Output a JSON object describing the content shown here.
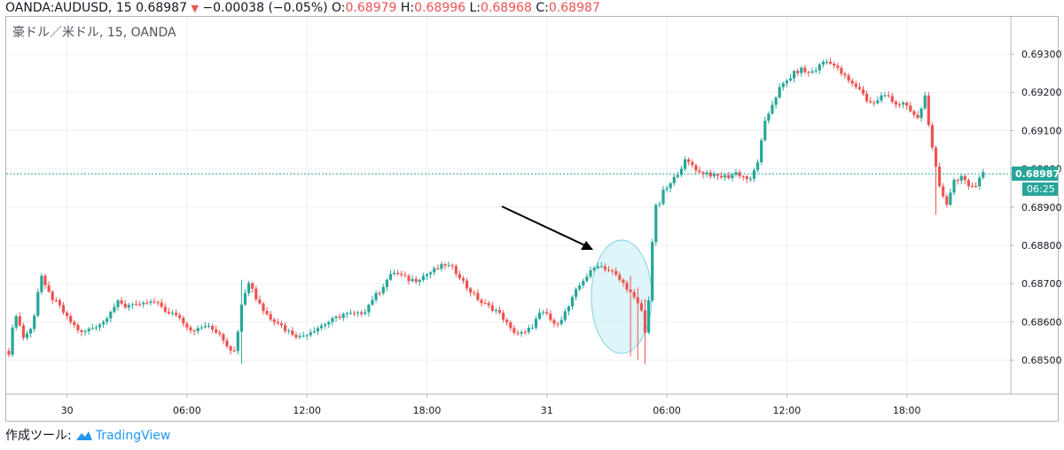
{
  "header": {
    "symbol": "OANDA:AUDUSD, 15",
    "last": "0.68987",
    "change_icon": "down-triangle-icon",
    "change": "−0.00038 (−0.05%)",
    "open_label": "O:",
    "open": "0.68979",
    "high_label": "H:",
    "high": "0.68996",
    "low_label": "L:",
    "low": "0.68968",
    "close_label": "C:",
    "close": "0.68987"
  },
  "footer": {
    "made_with": "作成ツール:",
    "brand": "TradingView",
    "brand_icon": "tradingview-logo-icon"
  },
  "colors": {
    "up": "#26a69a",
    "down": "#ef5350",
    "price_line": "#26a69a",
    "annotation_fill": "#d0f1f7",
    "arrow": "#000000"
  },
  "chart_data": {
    "type": "candlestick",
    "title": "豪ドル／米ドル, 15, OANDA",
    "ylim": [
      0.6844,
      0.6935
    ],
    "y_ticks": [
      "0.68500",
      "0.68600",
      "0.68700",
      "0.68800",
      "0.68900",
      "0.69000",
      "0.69100",
      "0.69200",
      "0.69300"
    ],
    "x_ticks": [
      "30",
      "06:00",
      "12:00",
      "18:00",
      "31",
      "06:00",
      "12:00",
      "18:00"
    ],
    "current_price": "0.68987",
    "countdown": "06:25",
    "grid": true,
    "anchors": [
      [
        0,
        0.6852
      ],
      [
        1,
        0.6858
      ],
      [
        2,
        0.6862
      ],
      [
        3,
        0.6859
      ],
      [
        4,
        0.6856
      ],
      [
        5,
        0.6857
      ],
      [
        6,
        0.6858
      ],
      [
        7,
        0.6862
      ],
      [
        8,
        0.6868
      ],
      [
        9,
        0.6872
      ],
      [
        10,
        0.6869
      ],
      [
        12,
        0.6866
      ],
      [
        14,
        0.6864
      ],
      [
        16,
        0.6861
      ],
      [
        18,
        0.6859
      ],
      [
        20,
        0.6857
      ],
      [
        22,
        0.6858
      ],
      [
        24,
        0.6859
      ],
      [
        26,
        0.686
      ],
      [
        28,
        0.6863
      ],
      [
        30,
        0.6865
      ],
      [
        32,
        0.6864
      ],
      [
        34,
        0.6865
      ],
      [
        36,
        0.6864
      ],
      [
        38,
        0.6865
      ],
      [
        40,
        0.6865
      ],
      [
        42,
        0.6864
      ],
      [
        44,
        0.6862
      ],
      [
        46,
        0.6862
      ],
      [
        48,
        0.686
      ],
      [
        50,
        0.6858
      ],
      [
        52,
        0.6858
      ],
      [
        54,
        0.6859
      ],
      [
        56,
        0.6858
      ],
      [
        58,
        0.6857
      ],
      [
        60,
        0.6854
      ],
      [
        62,
        0.6852
      ],
      [
        63,
        0.6858
      ],
      [
        64,
        0.6865
      ],
      [
        65,
        0.6868
      ],
      [
        66,
        0.687
      ],
      [
        67,
        0.6869
      ],
      [
        68,
        0.6866
      ],
      [
        69,
        0.6865
      ],
      [
        70,
        0.6863
      ],
      [
        72,
        0.6861
      ],
      [
        74,
        0.686
      ],
      [
        76,
        0.6858
      ],
      [
        78,
        0.6857
      ],
      [
        80,
        0.6856
      ],
      [
        82,
        0.6857
      ],
      [
        84,
        0.6858
      ],
      [
        86,
        0.6859
      ],
      [
        88,
        0.686
      ],
      [
        90,
        0.6861
      ],
      [
        92,
        0.6862
      ],
      [
        94,
        0.6862
      ],
      [
        96,
        0.6862
      ],
      [
        98,
        0.6863
      ],
      [
        100,
        0.6866
      ],
      [
        102,
        0.6868
      ],
      [
        104,
        0.6871
      ],
      [
        106,
        0.6873
      ],
      [
        108,
        0.6872
      ],
      [
        110,
        0.6871
      ],
      [
        112,
        0.6871
      ],
      [
        114,
        0.6872
      ],
      [
        116,
        0.6873
      ],
      [
        118,
        0.6874
      ],
      [
        120,
        0.6875
      ],
      [
        122,
        0.6874
      ],
      [
        124,
        0.6872
      ],
      [
        126,
        0.6869
      ],
      [
        128,
        0.6867
      ],
      [
        130,
        0.6865
      ],
      [
        132,
        0.6864
      ],
      [
        134,
        0.6863
      ],
      [
        136,
        0.6861
      ],
      [
        138,
        0.6858
      ],
      [
        140,
        0.6857
      ],
      [
        142,
        0.6857
      ],
      [
        144,
        0.6859
      ],
      [
        146,
        0.6862
      ],
      [
        148,
        0.6862
      ],
      [
        150,
        0.6859
      ],
      [
        152,
        0.6861
      ],
      [
        154,
        0.6864
      ],
      [
        156,
        0.6868
      ],
      [
        158,
        0.6871
      ],
      [
        160,
        0.6873
      ],
      [
        162,
        0.6875
      ],
      [
        164,
        0.6874
      ],
      [
        166,
        0.6873
      ],
      [
        168,
        0.6871
      ],
      [
        170,
        0.6869
      ],
      [
        172,
        0.6866
      ],
      [
        174,
        0.6863
      ],
      [
        175,
        0.6857
      ],
      [
        176,
        0.6866
      ],
      [
        177,
        0.6881
      ],
      [
        178,
        0.689
      ],
      [
        179,
        0.6891
      ],
      [
        180,
        0.6894
      ],
      [
        182,
        0.6896
      ],
      [
        184,
        0.6899
      ],
      [
        186,
        0.6902
      ],
      [
        188,
        0.6901
      ],
      [
        190,
        0.6899
      ],
      [
        192,
        0.6899
      ],
      [
        194,
        0.6898
      ],
      [
        196,
        0.6898
      ],
      [
        198,
        0.6898
      ],
      [
        200,
        0.6899
      ],
      [
        202,
        0.6898
      ],
      [
        204,
        0.6897
      ],
      [
        206,
        0.6902
      ],
      [
        208,
        0.6912
      ],
      [
        210,
        0.6917
      ],
      [
        212,
        0.6921
      ],
      [
        214,
        0.6923
      ],
      [
        216,
        0.6925
      ],
      [
        218,
        0.6926
      ],
      [
        220,
        0.6925
      ],
      [
        222,
        0.6926
      ],
      [
        224,
        0.6928
      ],
      [
        226,
        0.6928
      ],
      [
        228,
        0.6926
      ],
      [
        230,
        0.6924
      ],
      [
        232,
        0.6922
      ],
      [
        234,
        0.6921
      ],
      [
        236,
        0.6918
      ],
      [
        238,
        0.6917
      ],
      [
        240,
        0.6919
      ],
      [
        242,
        0.6919
      ],
      [
        244,
        0.6917
      ],
      [
        246,
        0.6917
      ],
      [
        248,
        0.6915
      ],
      [
        250,
        0.6913
      ],
      [
        252,
        0.6919
      ],
      [
        254,
        0.6905
      ],
      [
        256,
        0.6895
      ],
      [
        258,
        0.6891
      ],
      [
        260,
        0.6897
      ],
      [
        262,
        0.6898
      ],
      [
        264,
        0.6895
      ],
      [
        266,
        0.6896
      ],
      [
        267,
        0.6898
      ],
      [
        268,
        0.6899
      ]
    ],
    "spikes": [
      {
        "bar": 171,
        "high": 0.6872,
        "low": 0.6851
      },
      {
        "bar": 173,
        "high": 0.6869,
        "low": 0.685
      },
      {
        "bar": 175,
        "high": 0.6866,
        "low": 0.6849
      },
      {
        "bar": 64,
        "high": 0.6871,
        "low": 0.6849
      },
      {
        "bar": 255,
        "high": 0.6898,
        "low": 0.6888
      }
    ]
  }
}
